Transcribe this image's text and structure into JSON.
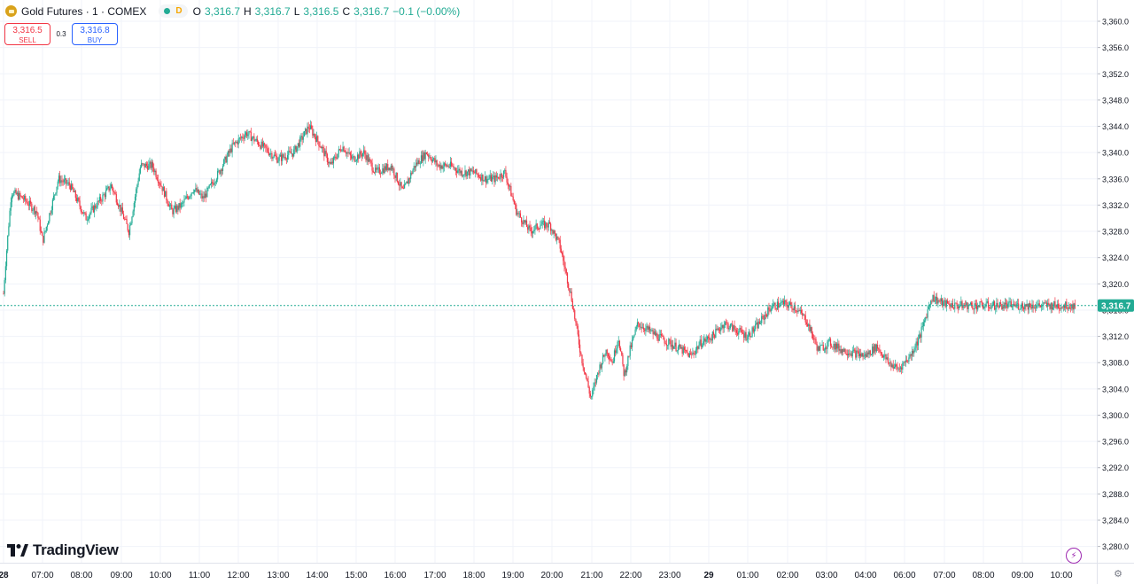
{
  "header": {
    "title": "Gold Futures · 1 · COMEX",
    "status_label": "D",
    "ohlc": [
      {
        "key": "O",
        "value": "3,316.7"
      },
      {
        "key": "H",
        "value": "3,316.7"
      },
      {
        "key": "L",
        "value": "3,316.5"
      },
      {
        "key": "C",
        "value": "3,316.7"
      }
    ],
    "change": "−0.1 (−0.00%)"
  },
  "trade": {
    "sell_price": "3,316.5",
    "sell_label": "SELL",
    "spread": "0.3",
    "buy_price": "3,316.8",
    "buy_label": "BUY"
  },
  "branding": {
    "logo_text": "TradingView"
  },
  "colors": {
    "up": "#22ab94",
    "down": "#f23645",
    "grid": "#f0f3fa",
    "axis_text": "#131722",
    "last_price_bg": "#22ab94"
  },
  "chart_data": {
    "type": "candlestick",
    "last_price": 3316.7,
    "last_price_label": "3,316.7",
    "ylim": [
      3278,
      3362
    ],
    "y_ticks": [
      3280,
      3284,
      3288,
      3292,
      3296,
      3300,
      3304,
      3308,
      3312,
      3316,
      3320,
      3324,
      3328,
      3332,
      3336,
      3340,
      3344,
      3348,
      3352,
      3356,
      3360
    ],
    "y_tick_labels": [
      "3,280.0",
      "3,284.0",
      "3,288.0",
      "3,292.0",
      "3,296.0",
      "3,300.0",
      "3,304.0",
      "3,308.0",
      "3,312.0",
      "3,316.0",
      "3,320.0",
      "3,324.0",
      "3,328.0",
      "3,332.0",
      "3,336.0",
      "3,340.0",
      "3,344.0",
      "3,348.0",
      "3,352.0",
      "3,356.0",
      "3,360.0"
    ],
    "x_ticks": [
      "28",
      "07:00",
      "08:00",
      "09:00",
      "10:00",
      "11:00",
      "12:00",
      "13:00",
      "14:00",
      "15:00",
      "16:00",
      "17:00",
      "18:00",
      "19:00",
      "20:00",
      "21:00",
      "22:00",
      "23:00",
      "29",
      "01:00",
      "02:00",
      "03:00",
      "04:00",
      "06:00",
      "07:00",
      "08:00",
      "09:00",
      "10:00"
    ],
    "price_path": {
      "time_hours": [
        0,
        0.05,
        0.2,
        0.5,
        0.85,
        1.0,
        1.4,
        1.7,
        2.1,
        2.5,
        2.75,
        2.95,
        3.2,
        3.5,
        3.8,
        4.1,
        4.3,
        4.55,
        4.85,
        5.1,
        5.5,
        5.85,
        6.2,
        6.6,
        7.0,
        7.4,
        7.8,
        8.1,
        8.35,
        8.65,
        8.9,
        9.2,
        9.5,
        9.9,
        10.2,
        10.5,
        10.8,
        11.1,
        11.4,
        11.7,
        12.0,
        12.3,
        12.55,
        12.8,
        13.1,
        13.45,
        13.7,
        13.95,
        14.2,
        14.5,
        14.75,
        15.0,
        15.2,
        15.4,
        15.55,
        15.7,
        15.85,
        16.0,
        16.2,
        16.45,
        16.7,
        17.0,
        17.3,
        17.55,
        17.8,
        18.1,
        18.4,
        18.7,
        19.0,
        19.3,
        19.6,
        19.9,
        20.2,
        20.5,
        20.8,
        21.1,
        21.4,
        21.7,
        22.0,
        22.3,
        22.6,
        22.85,
        23.15,
        23.4,
        23.7,
        24.0,
        24.3,
        24.6,
        24.9,
        25.2,
        25.45,
        25.7,
        25.95,
        26.2,
        26.45,
        26.7,
        27.0,
        27.2,
        27.4
      ],
      "close": [
        3318.5,
        3323,
        3334,
        3333,
        3331,
        3326.5,
        3336,
        3335,
        3330,
        3333,
        3335,
        3332,
        3328,
        3338,
        3338,
        3334,
        3331,
        3332,
        3334.5,
        3333,
        3337,
        3341,
        3343,
        3341,
        3339,
        3340,
        3344,
        3341,
        3338,
        3341,
        3339,
        3340,
        3337,
        3338,
        3334,
        3338,
        3340,
        3338,
        3338,
        3337,
        3337,
        3336,
        3336,
        3337,
        3331,
        3328,
        3329,
        3329,
        3326,
        3318,
        3309,
        3302.5,
        3307,
        3310,
        3308,
        3312,
        3306,
        3310,
        3314,
        3313,
        3312,
        3311,
        3310,
        3309,
        3311,
        3312,
        3314,
        3313,
        3312,
        3314,
        3316.5,
        3317,
        3316.5,
        3314.5,
        3310,
        3311,
        3310,
        3309.5,
        3309,
        3310.5,
        3308,
        3307,
        3309,
        3312,
        3318,
        3317,
        3316.7,
        3316.7,
        3316.7,
        3316.7,
        3316.7,
        3316.7,
        3316.7,
        3316.7,
        3316.7,
        3316.7,
        3316.7,
        3316.7,
        3316.7
      ]
    },
    "grid": true
  }
}
